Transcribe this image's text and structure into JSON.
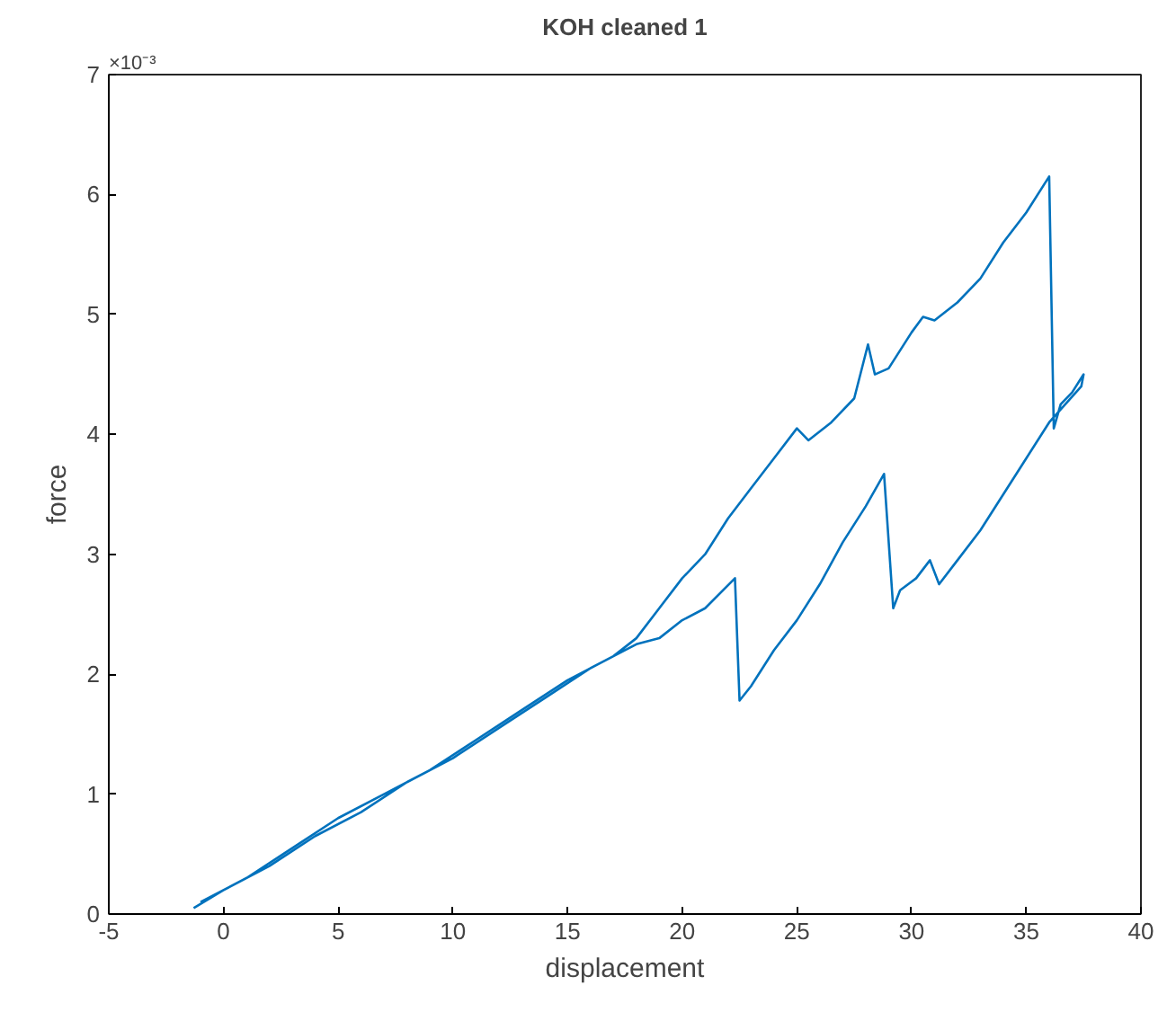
{
  "chart_data": {
    "type": "line",
    "title": "KOH cleaned 1",
    "xlabel": "displacement",
    "ylabel": "force",
    "annotations": [
      "×10⁻³"
    ],
    "x": [
      -1.3,
      0,
      2,
      4,
      6,
      8,
      10,
      12,
      14,
      16,
      17,
      18,
      19,
      20,
      21,
      22,
      23,
      24,
      25,
      25.5,
      26.5,
      27.5,
      28.1,
      28.4,
      29,
      30,
      30.5,
      31,
      32,
      33,
      34,
      35,
      36,
      36.2,
      36.5,
      37,
      37.5,
      37.4,
      36,
      35,
      34,
      33,
      32,
      31.2,
      30.8,
      30.2,
      29.5,
      29.2,
      28.8,
      28,
      27,
      26,
      25,
      24,
      23,
      22.5,
      22.3,
      21,
      20,
      19,
      18,
      17,
      15,
      13,
      11,
      9,
      7,
      5,
      3,
      1,
      -1
    ],
    "series": [
      {
        "color": "#0072bd",
        "values": [
          0.05,
          0.2,
          0.4,
          0.65,
          0.85,
          1.1,
          1.3,
          1.55,
          1.8,
          2.05,
          2.15,
          2.3,
          2.55,
          2.8,
          3.0,
          3.3,
          3.55,
          3.8,
          4.05,
          3.95,
          4.1,
          4.3,
          4.75,
          4.5,
          4.55,
          4.85,
          4.98,
          4.95,
          5.1,
          5.3,
          5.6,
          5.85,
          6.15,
          4.05,
          4.25,
          4.35,
          4.5,
          4.4,
          4.1,
          3.8,
          3.5,
          3.2,
          2.95,
          2.75,
          2.95,
          2.8,
          2.7,
          2.55,
          3.67,
          3.4,
          3.1,
          2.75,
          2.45,
          2.2,
          1.9,
          1.78,
          2.8,
          2.55,
          2.45,
          2.3,
          2.25,
          2.15,
          1.95,
          1.7,
          1.45,
          1.2,
          1.0,
          0.8,
          0.55,
          0.3,
          0.1
        ]
      }
    ],
    "xlim": [
      -5,
      40
    ],
    "xticks": [
      -5,
      0,
      5,
      10,
      15,
      20,
      25,
      30,
      35,
      40
    ],
    "ylim": [
      0,
      7
    ],
    "yticks": [
      0,
      1,
      2,
      3,
      4,
      5,
      6,
      7
    ],
    "grid": false,
    "line_style": "solid"
  }
}
